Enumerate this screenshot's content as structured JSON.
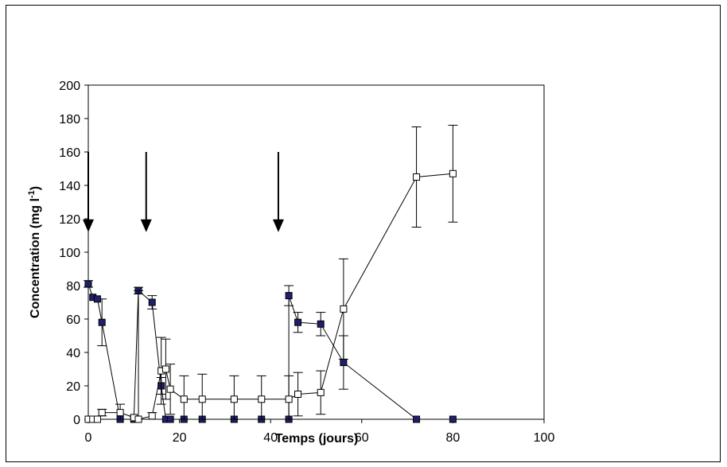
{
  "chart_data": {
    "type": "line",
    "title": "",
    "xlabel": "Temps (jours)",
    "ylabel": {
      "main": "Concentration  (mg l",
      "sup": "-1",
      "close": ")"
    },
    "xlim": [
      0,
      100
    ],
    "ylim": [
      0,
      200
    ],
    "xticks": [
      0,
      20,
      40,
      60,
      80,
      100
    ],
    "yticks": [
      0,
      20,
      40,
      60,
      80,
      100,
      120,
      140,
      160,
      180,
      200
    ],
    "grid": false,
    "legend": "none",
    "colors": {
      "filled_marker": "#1f1f6e",
      "open_marker_fill": "#ffffff",
      "line": "#000000"
    },
    "arrows": {
      "x": [
        0,
        12.7,
        41.7
      ],
      "y_top": 160,
      "y_tip": 112
    },
    "series": [
      {
        "marker": "filled-square",
        "points": [
          {
            "x": 0,
            "y": 81,
            "err": 2
          },
          {
            "x": 1,
            "y": 73,
            "err": 0
          },
          {
            "x": 2,
            "y": 72,
            "err": 0
          },
          {
            "x": 3,
            "y": 58,
            "err": 14
          },
          {
            "x": 7,
            "y": 0,
            "err": 0
          },
          {
            "x": 10,
            "y": 0,
            "err": 0
          },
          {
            "x": 11,
            "y": 77,
            "err": 2
          },
          {
            "x": 14,
            "y": 70,
            "err": 4
          },
          {
            "x": 16,
            "y": 20,
            "err": 5
          },
          {
            "x": 17,
            "y": 0,
            "err": 0
          },
          {
            "x": 18,
            "y": 0,
            "err": 0
          },
          {
            "x": 21,
            "y": 0,
            "err": 0
          },
          {
            "x": 25,
            "y": 0,
            "err": 0
          },
          {
            "x": 32,
            "y": 0,
            "err": 0
          },
          {
            "x": 38,
            "y": 0,
            "err": 0
          },
          {
            "x": 44,
            "y": 0,
            "err": 0
          },
          {
            "x": 44,
            "y": 74,
            "err": 6
          },
          {
            "x": 46,
            "y": 58,
            "err": 6
          },
          {
            "x": 51,
            "y": 57,
            "err": 7
          },
          {
            "x": 56,
            "y": 34,
            "err": 16
          },
          {
            "x": 72,
            "y": 0,
            "err": 0
          },
          {
            "x": 80,
            "y": 0,
            "err": 0
          }
        ]
      },
      {
        "marker": "open-square",
        "points": [
          {
            "x": 0,
            "y": 0,
            "err": 0
          },
          {
            "x": 1,
            "y": 0,
            "err": 0
          },
          {
            "x": 2,
            "y": 0,
            "err": 0
          },
          {
            "x": 3,
            "y": 4,
            "err": 2
          },
          {
            "x": 7,
            "y": 4,
            "err": 5
          },
          {
            "x": 10,
            "y": 1,
            "err": 1
          },
          {
            "x": 11,
            "y": 0,
            "err": 77
          },
          {
            "x": 14,
            "y": 2,
            "err": 2
          },
          {
            "x": 16,
            "y": 29,
            "err": 20
          },
          {
            "x": 17,
            "y": 30,
            "err": 18
          },
          {
            "x": 18,
            "y": 18,
            "err": 15
          },
          {
            "x": 21,
            "y": 12,
            "err": 14
          },
          {
            "x": 25,
            "y": 12,
            "err": 15
          },
          {
            "x": 32,
            "y": 12,
            "err": 14
          },
          {
            "x": 38,
            "y": 12,
            "err": 14
          },
          {
            "x": 44,
            "y": 12,
            "err": 14
          },
          {
            "x": 46,
            "y": 15,
            "err": 13
          },
          {
            "x": 51,
            "y": 16,
            "err": 13
          },
          {
            "x": 56,
            "y": 66,
            "err": 30
          },
          {
            "x": 72,
            "y": 145,
            "err": 30
          },
          {
            "x": 80,
            "y": 147,
            "err": 29
          }
        ]
      }
    ]
  }
}
